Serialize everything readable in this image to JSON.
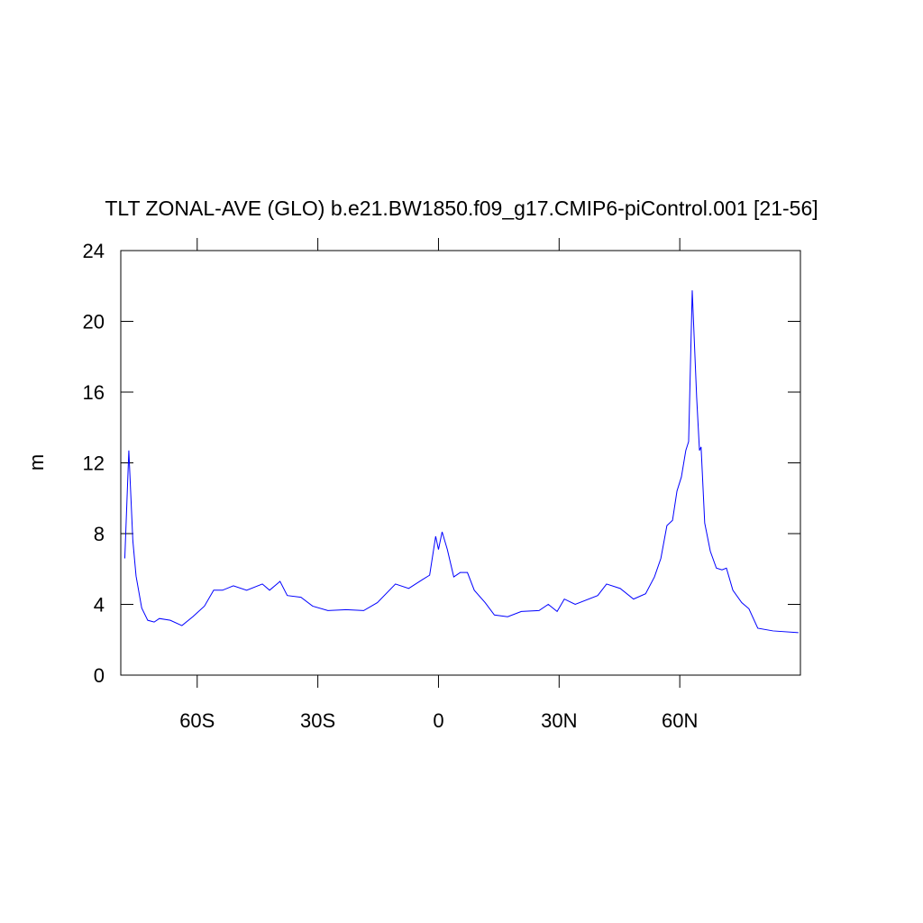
{
  "chart_data": {
    "type": "line",
    "title": "TLT ZONAL-AVE (GLO) b.e21.BW1850.f09_g17.CMIP6-piControl.001 [21-56]",
    "y_label": "m",
    "x": [
      -78,
      -77,
      -76,
      -75.2,
      -73.8,
      -72.3,
      -70.7,
      -69.4,
      -66.7,
      -63.8,
      -61.1,
      -58.2,
      -55.9,
      -53.7,
      -51,
      -47.7,
      -43.8,
      -42,
      -39.4,
      -37.6,
      -34.2,
      -31.3,
      -27.5,
      -23,
      -18.6,
      -15.2,
      -10.7,
      -7.4,
      -4,
      -2.2,
      -0.7,
      0,
      0.9,
      2.2,
      3.8,
      5.4,
      7.2,
      8.9,
      11.6,
      13.9,
      17.2,
      20.6,
      25,
      27.3,
      29.5,
      31.3,
      34,
      39.6,
      41.8,
      45.2,
      48.5,
      51.5,
      53.7,
      55.3,
      56.8,
      58.2,
      59.3,
      60.4,
      61.5,
      62.2,
      63.1,
      64.2,
      64.9,
      65.3,
      66.2,
      67.6,
      69.1,
      70.5,
      71.6,
      73.2,
      75.4,
      77.2,
      79.4,
      83.2,
      89.5
    ],
    "series": [
      {
        "color": "#0000ff",
        "values": [
          6.6,
          12.7,
          7.6,
          5.6,
          3.8,
          3.1,
          3.0,
          3.2,
          3.1,
          2.8,
          3.3,
          3.9,
          4.8,
          4.8,
          5.05,
          4.8,
          5.15,
          4.8,
          5.3,
          4.5,
          4.4,
          3.9,
          3.65,
          3.7,
          3.65,
          4.1,
          5.15,
          4.9,
          5.4,
          5.65,
          7.85,
          7.1,
          8.1,
          7.1,
          5.55,
          5.8,
          5.8,
          4.8,
          4.1,
          3.4,
          3.3,
          3.6,
          3.65,
          4.0,
          3.6,
          4.3,
          4.0,
          4.5,
          5.15,
          4.9,
          4.3,
          4.6,
          5.55,
          6.6,
          8.45,
          8.75,
          10.4,
          11.2,
          12.7,
          13.2,
          21.75,
          15.7,
          12.7,
          12.9,
          8.6,
          7.0,
          6.05,
          5.95,
          6.05,
          4.8,
          4.1,
          3.75,
          2.65,
          2.5,
          2.4
        ]
      }
    ],
    "xlim": [
      -79,
      90
    ],
    "xticks": [
      {
        "value": -60,
        "label": "60S"
      },
      {
        "value": -30,
        "label": "30S"
      },
      0,
      {
        "value": 30,
        "label": "30N"
      },
      {
        "value": 60,
        "label": "60N"
      }
    ],
    "ylim": [
      0,
      24
    ],
    "yticks": [
      0,
      4,
      8,
      12,
      16,
      20,
      24
    ]
  }
}
